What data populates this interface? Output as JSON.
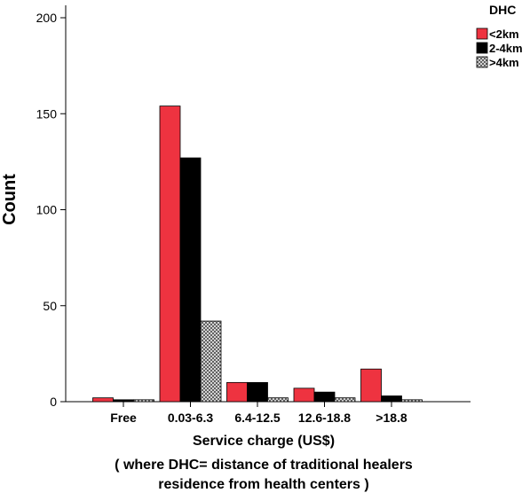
{
  "chart_data": {
    "type": "bar",
    "ylabel": "Count",
    "xlabel_lines": [
      "Service charge (US$)",
      "( where DHC= distance of traditional healers",
      "residence from health centers )"
    ],
    "categories": [
      "Free",
      "0.03-6.3",
      "6.4-12.5",
      "12.6-18.8",
      ">18.8"
    ],
    "ylim": [
      0,
      200
    ],
    "yticks": [
      0,
      50,
      100,
      150,
      200
    ],
    "legend_title": "DHC",
    "legend_position": "top-right",
    "grid": false,
    "series": [
      {
        "name": "<2km",
        "color": "#ee3340",
        "pattern": "solid",
        "values": [
          2,
          154,
          10,
          7,
          17
        ]
      },
      {
        "name": "2-4km",
        "color": "#000000",
        "pattern": "solid",
        "values": [
          1,
          127,
          10,
          5,
          3
        ]
      },
      {
        "name": ">4km",
        "color": "#9a9a9a",
        "pattern": "crosshatch",
        "values": [
          1,
          42,
          2,
          2,
          1
        ]
      }
    ]
  }
}
